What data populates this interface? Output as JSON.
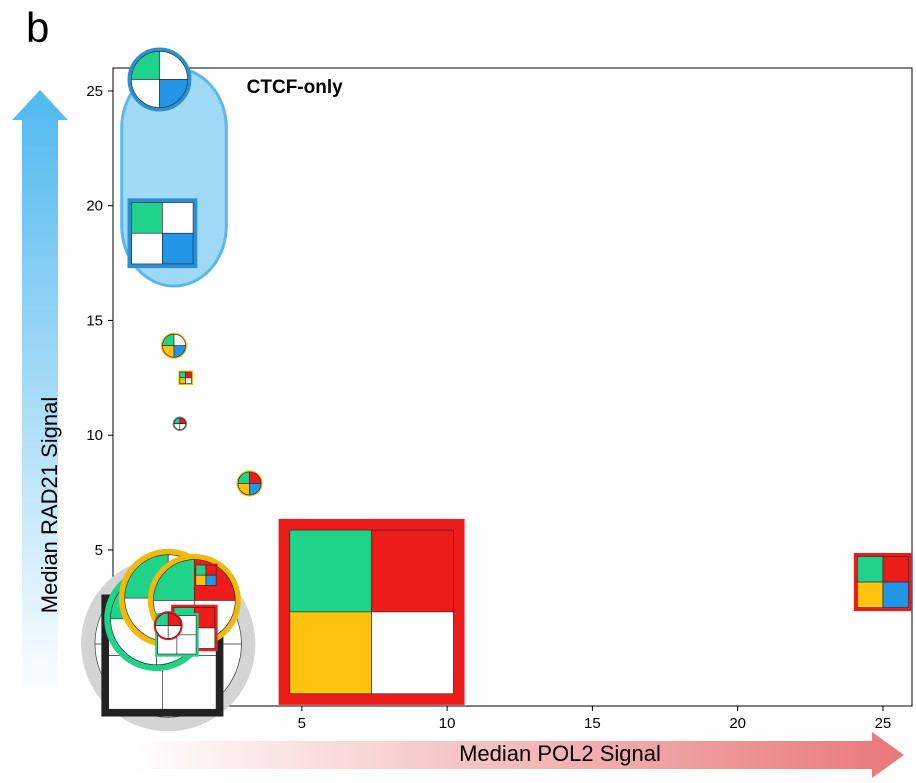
{
  "panel_label": "b",
  "chart_data": {
    "type": "scatter",
    "xlabel": "Median POL2 Signal",
    "ylabel": "Median RAD21 Signal",
    "xlim": [
      -1.5,
      26
    ],
    "ylim": [
      -1.8,
      26
    ],
    "xticks": [
      0,
      5,
      10,
      15,
      20,
      25
    ],
    "yticks": [
      0,
      5,
      10,
      15,
      20,
      25
    ],
    "grid": false,
    "colors": {
      "green": "#1fd38a",
      "red": "#ee1b1b",
      "yellow": "#ffc20e",
      "blue": "#2196e8",
      "highlight_fill": "#9fd9f5",
      "highlight_stroke": "#5bb8e8",
      "yellow_border": "#f0b90b",
      "grey_halo": "#d4d4d4"
    },
    "annotation": {
      "text": "CTCF-only",
      "x": 3.1,
      "y": 24.9
    },
    "highlight_region": {
      "label": "CTCF-only",
      "x_range": [
        -1.2,
        2.4
      ],
      "y_range": [
        16.5,
        26.0
      ]
    },
    "points": [
      {
        "x": 0.1,
        "y": 25.5,
        "shape": "circle",
        "size": 2.2,
        "quadrants": [
          "green",
          "white",
          "white",
          "blue"
        ],
        "border": "blue"
      },
      {
        "x": 0.2,
        "y": 18.8,
        "shape": "square",
        "size": 2.4,
        "quadrants": [
          "green",
          "white",
          "white",
          "blue"
        ],
        "border": "blue"
      },
      {
        "x": 0.6,
        "y": 13.9,
        "shape": "circle",
        "size": 0.9,
        "quadrants": [
          "green",
          "white",
          "yellow",
          "blue"
        ],
        "border": "yellow"
      },
      {
        "x": 1.0,
        "y": 12.5,
        "shape": "square",
        "size": 0.5,
        "quadrants": [
          "green",
          "red",
          "yellow",
          "white"
        ],
        "border": "yellow"
      },
      {
        "x": 0.8,
        "y": 10.5,
        "shape": "circle",
        "size": 0.5,
        "quadrants": [
          "green",
          "red",
          "white",
          "white"
        ],
        "border": "grey"
      },
      {
        "x": 3.2,
        "y": 7.9,
        "shape": "circle",
        "size": 0.9,
        "quadrants": [
          "green",
          "red",
          "yellow",
          "blue"
        ],
        "border": "yellow"
      },
      {
        "x": 1.7,
        "y": 3.9,
        "shape": "square",
        "size": 0.8,
        "quadrants": [
          "green",
          "red",
          "yellow",
          "blue"
        ],
        "border": "red"
      },
      {
        "x": 7.4,
        "y": 2.3,
        "shape": "square",
        "size": 6.4,
        "quadrants": [
          "green",
          "red",
          "yellow",
          "white"
        ],
        "border": "red"
      },
      {
        "x": 25.0,
        "y": 3.6,
        "shape": "square",
        "size": 2.0,
        "quadrants": [
          "green",
          "red",
          "yellow",
          "blue"
        ],
        "border": "red"
      },
      {
        "x": 0.4,
        "y": 0.9,
        "shape": "circle",
        "size": 6.0,
        "quadrants": [
          "white",
          "white",
          "white",
          "white"
        ],
        "border": "grey_halo"
      },
      {
        "x": 0.2,
        "y": 0.4,
        "shape": "square",
        "size": 4.2,
        "quadrants": [
          "white",
          "white",
          "white",
          "white"
        ],
        "border": "black"
      },
      {
        "x": 0.0,
        "y": 2.0,
        "shape": "circle",
        "size": 3.6,
        "quadrants": [
          "green",
          "white",
          "white",
          "white"
        ],
        "border": "green"
      },
      {
        "x": 0.4,
        "y": 2.9,
        "shape": "circle",
        "size": 3.4,
        "quadrants": [
          "green",
          "white",
          "white",
          "white"
        ],
        "border": "yellow"
      },
      {
        "x": 1.3,
        "y": 2.8,
        "shape": "circle",
        "size": 3.2,
        "quadrants": [
          "green",
          "red",
          "white",
          "white"
        ],
        "border": "yellow"
      },
      {
        "x": 0.7,
        "y": 1.3,
        "shape": "square",
        "size": 1.5,
        "quadrants": [
          "green",
          "white",
          "white",
          "white"
        ],
        "border": "green"
      },
      {
        "x": 0.4,
        "y": 1.7,
        "shape": "circle",
        "size": 1.0,
        "quadrants": [
          "green",
          "red",
          "white",
          "white"
        ],
        "border": "red"
      },
      {
        "x": 1.3,
        "y": 1.6,
        "shape": "square",
        "size": 1.6,
        "quadrants": [
          "green",
          "red",
          "white",
          "white"
        ],
        "border": "red"
      }
    ]
  }
}
